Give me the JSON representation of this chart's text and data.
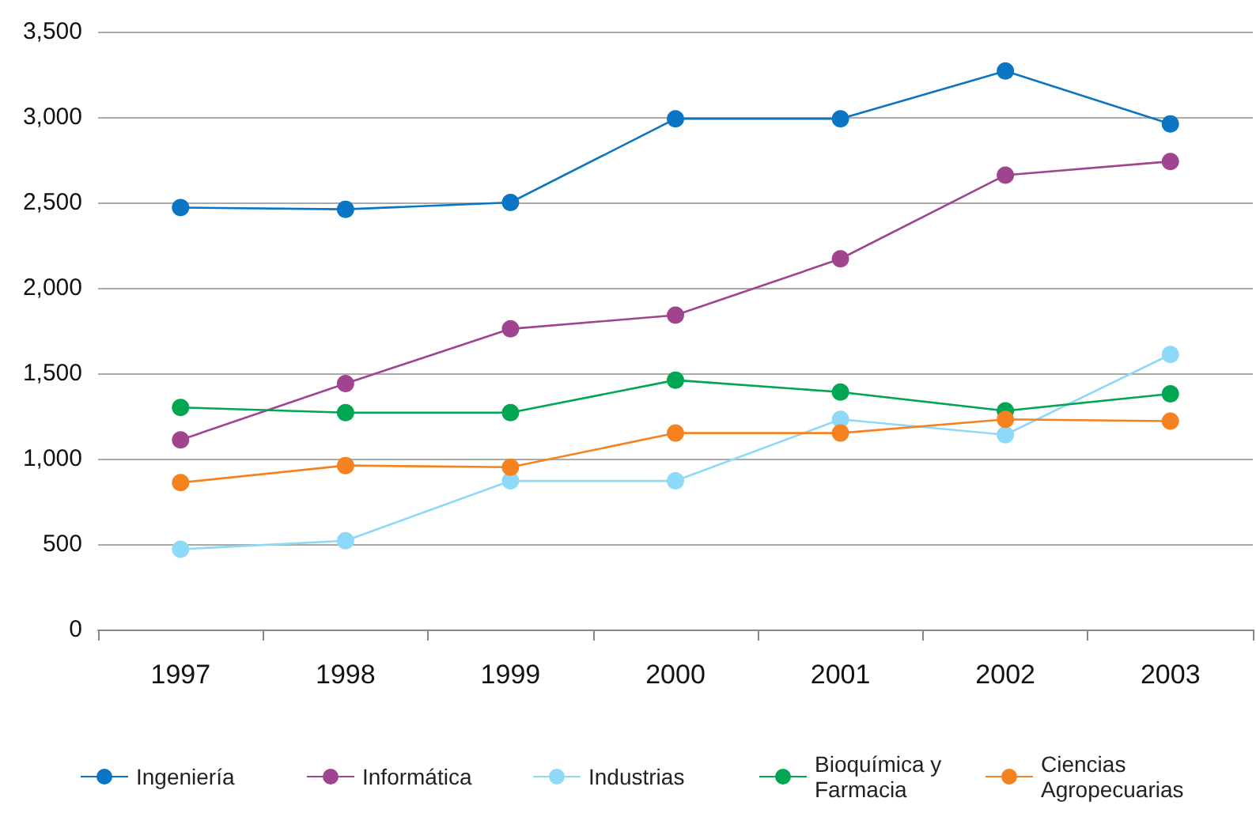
{
  "chart_data": {
    "type": "line",
    "categories": [
      "1997",
      "1998",
      "1999",
      "2000",
      "2001",
      "2002",
      "2003"
    ],
    "series": [
      {
        "name": "Ingeniería",
        "color": "#0a75c2",
        "values": [
          2470,
          2460,
          2500,
          2990,
          2990,
          3270,
          2960
        ]
      },
      {
        "name": "Informática",
        "color": "#a0448f",
        "values": [
          1110,
          1440,
          1760,
          1840,
          2170,
          2660,
          2740
        ]
      },
      {
        "name": "Industrias",
        "color": "#8ed8f8",
        "values": [
          470,
          520,
          870,
          870,
          1230,
          1140,
          1610
        ]
      },
      {
        "name": "Bioquímica y Farmacia",
        "color": "#00a651",
        "values": [
          1300,
          1270,
          1270,
          1460,
          1390,
          1280,
          1380
        ]
      },
      {
        "name": "Ciencias Agropecuarias",
        "color": "#f5821f",
        "values": [
          860,
          960,
          950,
          1150,
          1150,
          1230,
          1220
        ]
      }
    ],
    "ylim": [
      0,
      3500
    ],
    "yticks": [
      {
        "value": 0,
        "label": "0"
      },
      {
        "value": 500,
        "label": "500"
      },
      {
        "value": 1000,
        "label": "1,000"
      },
      {
        "value": 1500,
        "label": "1,500"
      },
      {
        "value": 2000,
        "label": "2,000"
      },
      {
        "value": 2500,
        "label": "2,500"
      },
      {
        "value": 3000,
        "label": "3,000"
      },
      {
        "value": 3500,
        "label": "3,500"
      }
    ],
    "grid": "y",
    "legend": "bottom",
    "marker": "circle",
    "line_style": "solid"
  }
}
